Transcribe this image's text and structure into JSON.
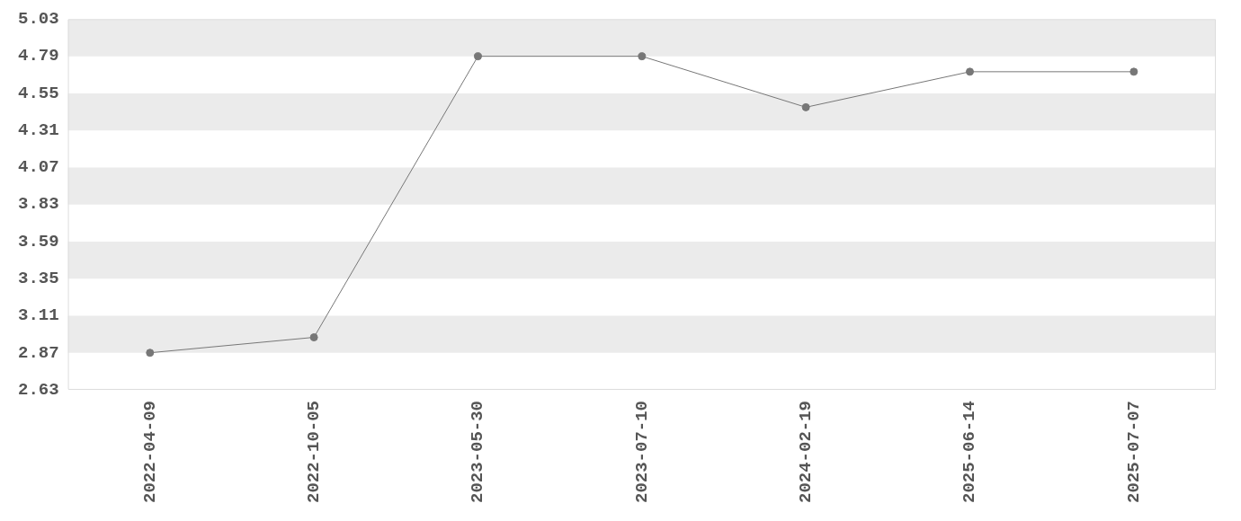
{
  "chart_data": {
    "type": "line",
    "categories": [
      "2022-04-09",
      "2022-10-05",
      "2023-05-30",
      "2023-07-10",
      "2024-02-19",
      "2025-06-14",
      "2025-07-07"
    ],
    "series": [
      {
        "color": "#777777",
        "values": [
          2.87,
          2.97,
          4.79,
          4.79,
          4.46,
          4.69,
          4.69
        ]
      }
    ],
    "ylim": [
      2.63,
      5.03
    ],
    "yticks": [
      2.63,
      2.87,
      3.11,
      3.35,
      3.59,
      3.83,
      4.07,
      4.31,
      4.55,
      4.79,
      5.03
    ],
    "bands": [
      {
        "axis": "y",
        "from": 4.79,
        "to": 5.03,
        "color": "#ebebeb"
      },
      {
        "axis": "y",
        "from": 4.31,
        "to": 4.55,
        "color": "#ebebeb"
      },
      {
        "axis": "y",
        "from": 3.83,
        "to": 4.07,
        "color": "#ebebeb"
      },
      {
        "axis": "y",
        "from": 3.35,
        "to": 3.59,
        "color": "#ebebeb"
      },
      {
        "axis": "y",
        "from": 2.87,
        "to": 3.11,
        "color": "#ebebeb"
      }
    ],
    "legend": false,
    "marker": "circle",
    "line_style": "solid"
  }
}
